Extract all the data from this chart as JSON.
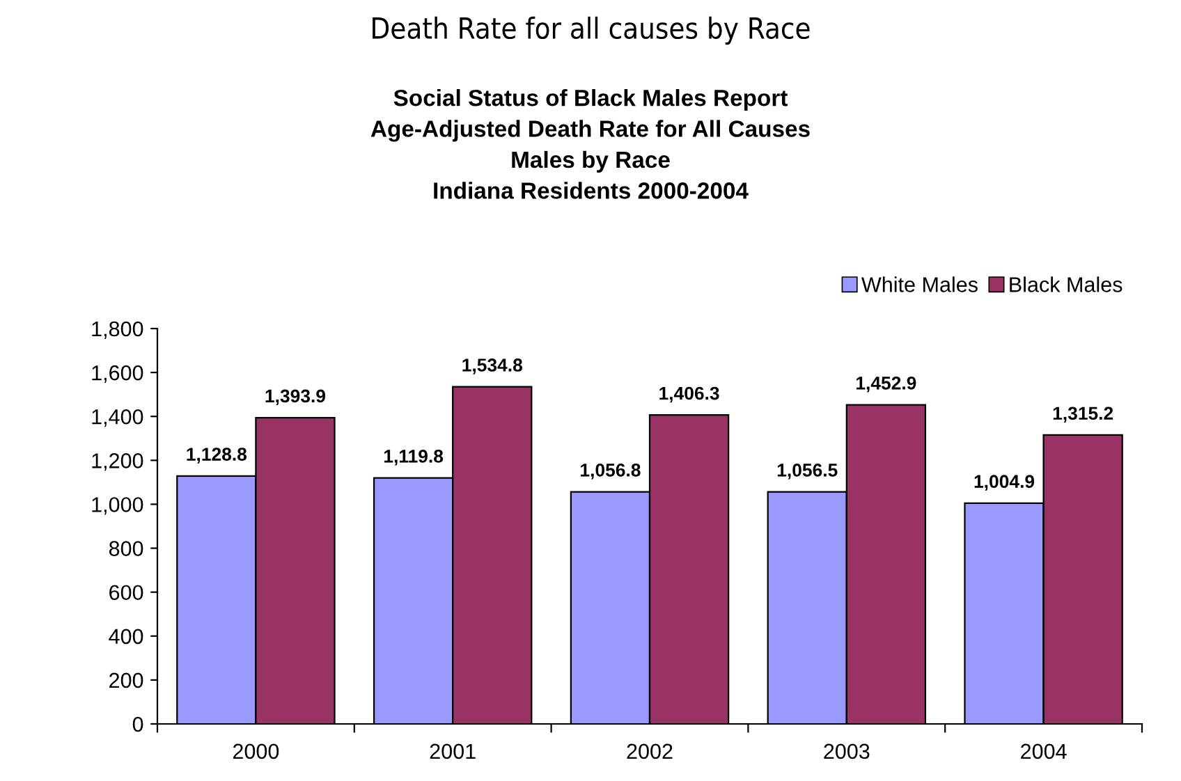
{
  "chart_data": {
    "type": "bar",
    "title": "Death Rate for all causes by Race",
    "subtitle": "Social Status of Black Males Report\nAge-Adjusted Death Rate for All Causes\nMales by Race\nIndiana Residents 2000-2004",
    "categories": [
      "2000",
      "2001",
      "2002",
      "2003",
      "2004"
    ],
    "series": [
      {
        "name": "White Males",
        "color": "#9999ff",
        "values": [
          1128.8,
          1119.8,
          1056.8,
          1056.5,
          1004.9
        ]
      },
      {
        "name": "Black Males",
        "color": "#993366",
        "values": [
          1393.9,
          1534.8,
          1406.3,
          1452.9,
          1315.2
        ]
      }
    ],
    "ylim": [
      0,
      1800
    ],
    "yticks": [
      {
        "value": 0,
        "label": "0"
      },
      {
        "value": 200,
        "label": "200"
      },
      {
        "value": 400,
        "label": "400"
      },
      {
        "value": 600,
        "label": "600"
      },
      {
        "value": 800,
        "label": "800"
      },
      {
        "value": 1000,
        "label": "1,000"
      },
      {
        "value": 1200,
        "label": "1,200"
      },
      {
        "value": 1400,
        "label": "1,400"
      },
      {
        "value": 1600,
        "label": "1,600"
      },
      {
        "value": 1800,
        "label": "1,800"
      }
    ],
    "value_labels": [
      [
        "1,128.8",
        "1,119.8",
        "1,056.8",
        "1,056.5",
        "1,004.9"
      ],
      [
        "1,393.9",
        "1,534.8",
        "1,406.3",
        "1,452.9",
        "1,315.2"
      ]
    ],
    "grid": false,
    "legend": "top right"
  }
}
